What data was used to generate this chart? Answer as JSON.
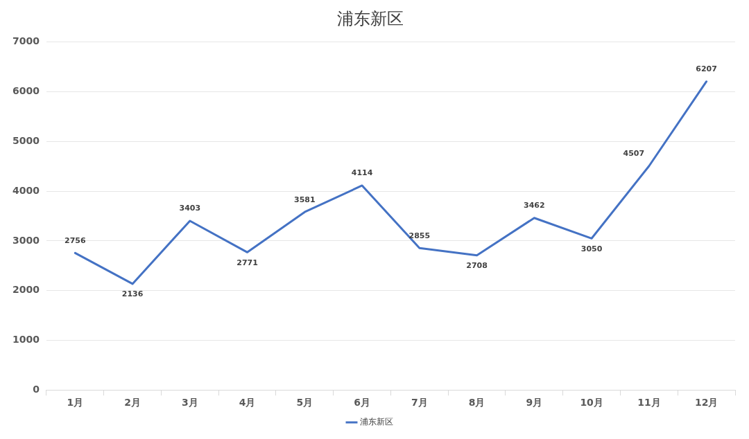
{
  "chart_data": {
    "type": "line",
    "title": "浦东新区",
    "categories": [
      "1月",
      "2月",
      "3月",
      "4月",
      "5月",
      "6月",
      "7月",
      "8月",
      "9月",
      "10月",
      "11月",
      "12月"
    ],
    "series": [
      {
        "name": "浦东新区",
        "color": "#4472c4",
        "values": [
          2756,
          2136,
          3403,
          2771,
          3581,
          4114,
          2855,
          2708,
          3462,
          3050,
          4507,
          6207
        ]
      }
    ],
    "ylim": [
      0,
      7000
    ],
    "yticks": [
      0,
      1000,
      2000,
      3000,
      4000,
      5000,
      6000,
      7000
    ],
    "grid": "y",
    "legend": "bottom",
    "data_labels": true,
    "marker": "none",
    "line_style": "solid"
  }
}
